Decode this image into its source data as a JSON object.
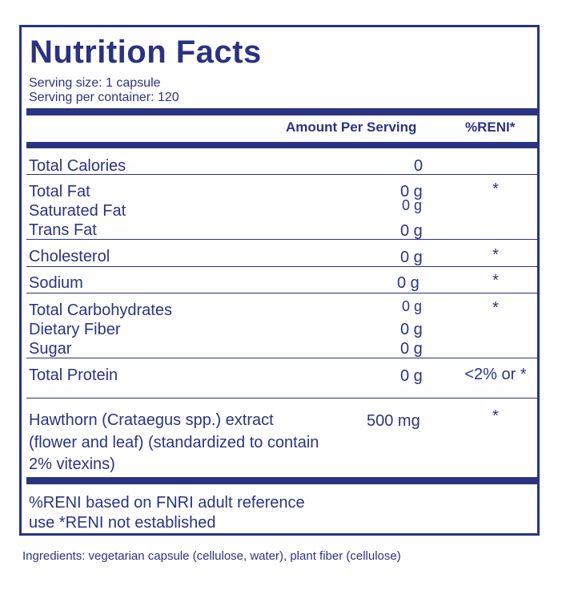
{
  "title": "Nutrition Facts",
  "serving_size": "Serving size:  1 capsule",
  "serving_per_container": "Serving per container:  120",
  "header": {
    "amount": "Amount Per Serving",
    "reni": "%RENI*"
  },
  "rows": [
    {
      "label": "Total Calories",
      "amount": "0",
      "reni": ""
    },
    {
      "label": "Total Fat",
      "amount": "0 g",
      "reni": "*"
    },
    {
      "label": "Saturated Fat",
      "amount": "0 g",
      "reni": ""
    },
    {
      "label": "Trans Fat",
      "amount": "0 g",
      "reni": ""
    },
    {
      "label": "Cholesterol",
      "amount": "0 g",
      "reni": "*"
    },
    {
      "label": "Sodium",
      "amount": "0 g",
      "reni": "*"
    },
    {
      "label": "Total Carbohydrates",
      "amount": "0 g",
      "reni": "*"
    },
    {
      "label": "Dietary Fiber",
      "amount": "0 g",
      "reni": ""
    },
    {
      "label": "Sugar",
      "amount": "0 g",
      "reni": ""
    },
    {
      "label": "Total Protein",
      "amount": "0 g",
      "reni": "<2% or *"
    }
  ],
  "hawthorn": {
    "line1": "Hawthorn (Crataegus spp.) extract",
    "line2": "(flower and leaf) (standardized to contain",
    "line3": "2% vitexins)",
    "amount": "500 mg",
    "reni": "*"
  },
  "footnote": {
    "line1": "%RENI based on FNRI adult reference",
    "line2": "use *RENI not established"
  },
  "ingredients": "Ingredients: vegetarian capsule (cellulose, water), plant fiber (cellulose)"
}
